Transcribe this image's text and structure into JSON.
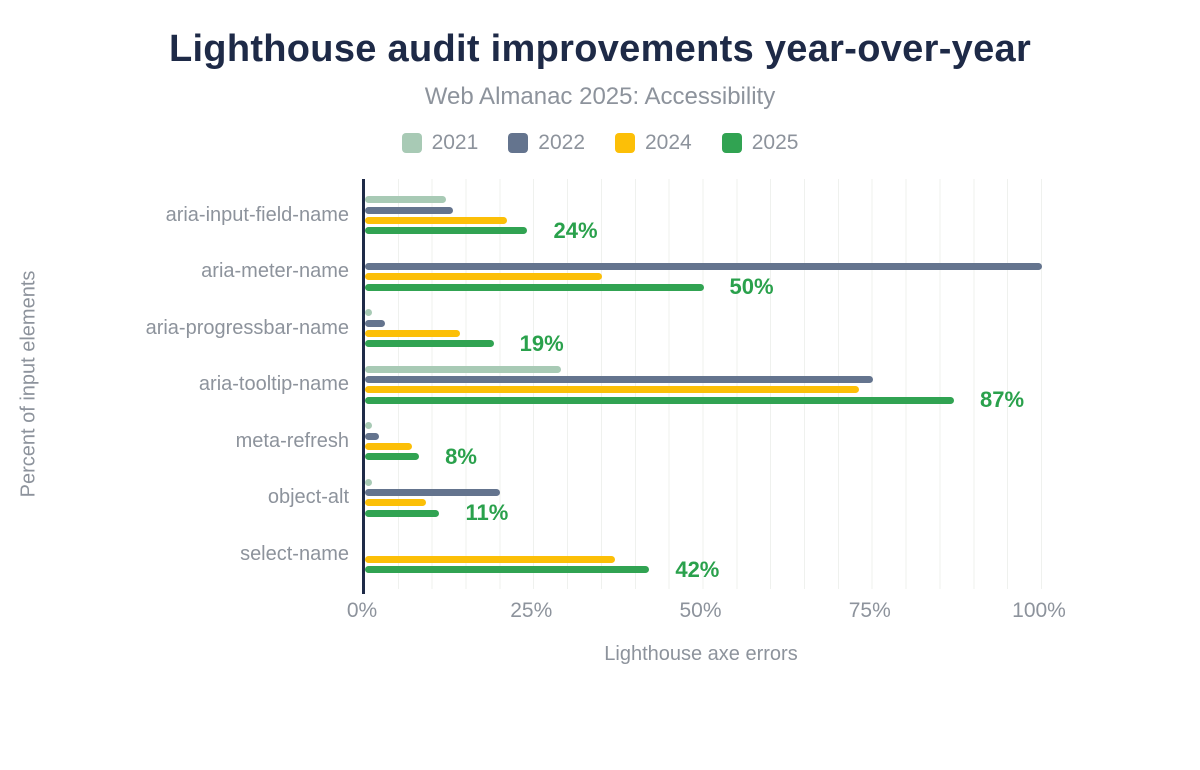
{
  "header": {
    "title": "Lighthouse audit improvements year-over-year",
    "subtitle": "Web Almanac 2025: Accessibility"
  },
  "chart_data": {
    "type": "bar",
    "orientation": "horizontal",
    "title": "Lighthouse audit improvements year-over-year",
    "subtitle": "Web Almanac 2025: Accessibility",
    "xlabel": "Lighthouse axe errors",
    "ylabel": "Percent of input elements",
    "xlim": [
      0,
      100
    ],
    "x_ticks": [
      "0%",
      "25%",
      "50%",
      "75%",
      "100%"
    ],
    "x_tick_values": [
      0,
      25,
      50,
      75,
      100
    ],
    "grid": "vertical gridlines every 5%",
    "legend_position": "top",
    "categories": [
      "aria-input-field-name",
      "aria-meter-name",
      "aria-progressbar-name",
      "aria-tooltip-name",
      "meta-refresh",
      "object-alt",
      "select-name"
    ],
    "series": [
      {
        "name": "2021",
        "color": "#a8cab5",
        "values": [
          12,
          null,
          1,
          29,
          1,
          1,
          null
        ]
      },
      {
        "name": "2022",
        "color": "#64748e",
        "values": [
          13,
          100,
          3,
          75,
          2,
          20,
          null
        ]
      },
      {
        "name": "2024",
        "color": "#fcbf07",
        "values": [
          21,
          35,
          14,
          73,
          7,
          9,
          37
        ]
      },
      {
        "name": "2025",
        "color": "#31a352",
        "values": [
          24,
          50,
          19,
          87,
          8,
          11,
          42
        ],
        "data_labels": [
          "24%",
          "50%",
          "19%",
          "87%",
          "8%",
          "11%",
          "42%"
        ]
      }
    ],
    "colors": {
      "title": "#1e2a47",
      "axis_line": "#1e2a47",
      "gridline": "#eff1ee",
      "muted_text": "#8d939c",
      "data_label": "#2aa14c",
      "background": "#ffffff"
    }
  }
}
